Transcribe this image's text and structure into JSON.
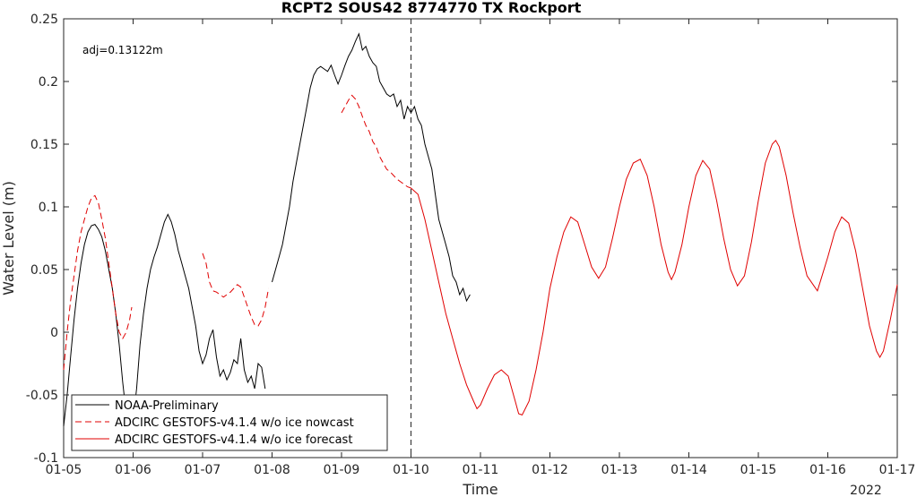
{
  "chart_data": {
    "type": "line",
    "title": "RCPT2 SOUS42 8774770 TX Rockport",
    "xlabel": "Time",
    "ylabel": "Water Level (m)",
    "x_unit": "day of January 2022",
    "xlim": [
      5,
      17
    ],
    "ylim": [
      -0.1,
      0.25
    ],
    "year_label": "2022",
    "annotation": "adj=0.13122m",
    "x_tick_values": [
      5,
      6,
      7,
      8,
      9,
      10,
      11,
      12,
      13,
      14,
      15,
      16,
      17
    ],
    "x_tick_labels": [
      "01-05",
      "01-06",
      "01-07",
      "01-08",
      "01-09",
      "01-10",
      "01-11",
      "01-12",
      "01-13",
      "01-14",
      "01-15",
      "01-16",
      "01-17"
    ],
    "y_tick_values": [
      -0.1,
      -0.05,
      0,
      0.05,
      0.1,
      0.15,
      0.2,
      0.25
    ],
    "y_tick_labels": [
      "-0.1",
      "-0.05",
      "0",
      "0.05",
      "0.1",
      "0.15",
      "0.2",
      "0.25"
    ],
    "vertical_marker_x": 10.0,
    "grid": false,
    "legend_position": "bottom-left",
    "series": [
      {
        "name": "NOAA-Preliminary",
        "color": "#000000",
        "style": "solid",
        "points": [
          [
            5.0,
            -0.075
          ],
          [
            5.05,
            -0.05
          ],
          [
            5.1,
            -0.02
          ],
          [
            5.15,
            0.01
          ],
          [
            5.2,
            0.035
          ],
          [
            5.25,
            0.055
          ],
          [
            5.3,
            0.07
          ],
          [
            5.35,
            0.08
          ],
          [
            5.4,
            0.085
          ],
          [
            5.45,
            0.086
          ],
          [
            5.5,
            0.082
          ],
          [
            5.55,
            0.076
          ],
          [
            5.6,
            0.065
          ],
          [
            5.65,
            0.05
          ],
          [
            5.7,
            0.035
          ],
          [
            5.75,
            0.015
          ],
          [
            5.8,
            -0.01
          ],
          [
            5.85,
            -0.04
          ],
          [
            5.9,
            -0.065
          ],
          [
            5.93,
            -0.075
          ],
          null,
          [
            5.95,
            -0.08
          ],
          [
            6.0,
            -0.07
          ],
          [
            6.05,
            -0.045
          ],
          [
            6.1,
            -0.01
          ],
          [
            6.15,
            0.015
          ],
          [
            6.2,
            0.035
          ],
          [
            6.25,
            0.05
          ],
          [
            6.3,
            0.06
          ],
          [
            6.35,
            0.068
          ],
          [
            6.4,
            0.078
          ],
          [
            6.45,
            0.088
          ],
          [
            6.5,
            0.094
          ],
          [
            6.55,
            0.088
          ],
          [
            6.6,
            0.078
          ],
          [
            6.65,
            0.065
          ],
          [
            6.7,
            0.055
          ],
          [
            6.75,
            0.045
          ],
          [
            6.8,
            0.035
          ],
          [
            6.85,
            0.02
          ],
          [
            6.9,
            0.005
          ],
          [
            6.95,
            -0.015
          ],
          [
            7.0,
            -0.025
          ],
          [
            7.05,
            -0.018
          ],
          [
            7.1,
            -0.005
          ],
          [
            7.15,
            0.002
          ],
          [
            7.2,
            -0.02
          ],
          [
            7.25,
            -0.035
          ],
          [
            7.3,
            -0.03
          ],
          [
            7.35,
            -0.038
          ],
          [
            7.4,
            -0.032
          ],
          [
            7.45,
            -0.022
          ],
          [
            7.5,
            -0.025
          ],
          [
            7.55,
            -0.005
          ],
          [
            7.6,
            -0.03
          ],
          [
            7.65,
            -0.04
          ],
          [
            7.7,
            -0.035
          ],
          [
            7.75,
            -0.045
          ],
          [
            7.8,
            -0.025
          ],
          [
            7.85,
            -0.028
          ],
          [
            7.9,
            -0.045
          ],
          null,
          [
            8.0,
            0.04
          ],
          [
            8.05,
            0.05
          ],
          [
            8.1,
            0.06
          ],
          [
            8.15,
            0.07
          ],
          [
            8.2,
            0.085
          ],
          [
            8.25,
            0.1
          ],
          [
            8.3,
            0.12
          ],
          [
            8.35,
            0.135
          ],
          [
            8.4,
            0.15
          ],
          [
            8.45,
            0.165
          ],
          [
            8.5,
            0.18
          ],
          [
            8.55,
            0.195
          ],
          [
            8.6,
            0.205
          ],
          [
            8.65,
            0.21
          ],
          [
            8.7,
            0.212
          ],
          [
            8.75,
            0.21
          ],
          [
            8.8,
            0.208
          ],
          [
            8.85,
            0.213
          ],
          [
            8.9,
            0.205
          ],
          [
            8.95,
            0.198
          ],
          [
            9.0,
            0.205
          ],
          [
            9.05,
            0.213
          ],
          [
            9.1,
            0.22
          ],
          [
            9.15,
            0.225
          ],
          [
            9.2,
            0.232
          ],
          [
            9.25,
            0.238
          ],
          [
            9.3,
            0.225
          ],
          [
            9.35,
            0.228
          ],
          [
            9.4,
            0.22
          ],
          [
            9.45,
            0.215
          ],
          [
            9.5,
            0.212
          ],
          [
            9.55,
            0.2
          ],
          [
            9.6,
            0.195
          ],
          [
            9.65,
            0.19
          ],
          [
            9.7,
            0.188
          ],
          [
            9.75,
            0.19
          ],
          [
            9.8,
            0.18
          ],
          [
            9.85,
            0.185
          ],
          [
            9.9,
            0.17
          ],
          [
            9.95,
            0.18
          ],
          [
            10.0,
            0.175
          ],
          [
            10.05,
            0.18
          ],
          [
            10.1,
            0.17
          ],
          [
            10.15,
            0.165
          ],
          [
            10.2,
            0.15
          ],
          [
            10.25,
            0.14
          ],
          [
            10.3,
            0.13
          ],
          [
            10.35,
            0.11
          ],
          [
            10.4,
            0.09
          ],
          [
            10.45,
            0.08
          ],
          [
            10.5,
            0.07
          ],
          [
            10.55,
            0.06
          ],
          [
            10.6,
            0.045
          ],
          [
            10.65,
            0.04
          ],
          [
            10.7,
            0.03
          ],
          [
            10.75,
            0.035
          ],
          [
            10.8,
            0.025
          ],
          [
            10.85,
            0.03
          ]
        ]
      },
      {
        "name": "ADCIRC GESTOFS-v4.1.4 w/o ice nowcast",
        "color": "#e00000",
        "style": "dashed",
        "points": [
          [
            5.0,
            -0.03
          ],
          [
            5.05,
            0.0
          ],
          [
            5.1,
            0.025
          ],
          [
            5.15,
            0.045
          ],
          [
            5.2,
            0.065
          ],
          [
            5.25,
            0.08
          ],
          [
            5.3,
            0.09
          ],
          [
            5.35,
            0.1
          ],
          [
            5.4,
            0.107
          ],
          [
            5.45,
            0.109
          ],
          [
            5.5,
            0.103
          ],
          [
            5.55,
            0.09
          ],
          [
            5.6,
            0.075
          ],
          [
            5.65,
            0.055
          ],
          [
            5.7,
            0.035
          ],
          [
            5.75,
            0.015
          ],
          [
            5.8,
            0.0
          ],
          [
            5.85,
            -0.005
          ],
          [
            5.9,
            0.0
          ],
          [
            5.95,
            0.01
          ],
          [
            5.98,
            0.02
          ],
          null,
          [
            7.0,
            0.063
          ],
          [
            7.05,
            0.055
          ],
          [
            7.1,
            0.04
          ],
          [
            7.15,
            0.033
          ],
          [
            7.2,
            0.032
          ],
          [
            7.25,
            0.03
          ],
          [
            7.3,
            0.028
          ],
          [
            7.35,
            0.03
          ],
          [
            7.4,
            0.032
          ],
          [
            7.45,
            0.035
          ],
          [
            7.5,
            0.038
          ],
          [
            7.55,
            0.036
          ],
          [
            7.6,
            0.028
          ],
          [
            7.65,
            0.02
          ],
          [
            7.7,
            0.012
          ],
          [
            7.75,
            0.006
          ],
          [
            7.8,
            0.005
          ],
          [
            7.85,
            0.01
          ],
          [
            7.9,
            0.02
          ],
          [
            7.95,
            0.035
          ],
          null,
          [
            9.0,
            0.175
          ],
          [
            9.05,
            0.18
          ],
          [
            9.1,
            0.185
          ],
          [
            9.15,
            0.189
          ],
          [
            9.2,
            0.186
          ],
          [
            9.25,
            0.18
          ],
          [
            9.3,
            0.172
          ],
          [
            9.35,
            0.165
          ],
          [
            9.4,
            0.16
          ],
          [
            9.45,
            0.152
          ],
          [
            9.5,
            0.148
          ],
          [
            9.55,
            0.14
          ],
          [
            9.6,
            0.135
          ],
          [
            9.65,
            0.13
          ],
          [
            9.7,
            0.128
          ],
          [
            9.75,
            0.125
          ],
          [
            9.8,
            0.122
          ],
          [
            9.85,
            0.12
          ],
          [
            9.9,
            0.118
          ],
          [
            9.95,
            0.116
          ],
          [
            10.0,
            0.115
          ]
        ]
      },
      {
        "name": "ADCIRC GESTOFS-v4.1.4 w/o ice forecast",
        "color": "#e00000",
        "style": "solid",
        "points": [
          [
            10.0,
            0.115
          ],
          [
            10.1,
            0.11
          ],
          [
            10.2,
            0.09
          ],
          [
            10.3,
            0.065
          ],
          [
            10.4,
            0.04
          ],
          [
            10.5,
            0.015
          ],
          [
            10.6,
            -0.005
          ],
          [
            10.7,
            -0.025
          ],
          [
            10.8,
            -0.042
          ],
          [
            10.9,
            -0.055
          ],
          [
            10.95,
            -0.061
          ],
          [
            11.0,
            -0.058
          ],
          [
            11.1,
            -0.045
          ],
          [
            11.2,
            -0.034
          ],
          [
            11.3,
            -0.03
          ],
          [
            11.4,
            -0.035
          ],
          [
            11.5,
            -0.055
          ],
          [
            11.55,
            -0.065
          ],
          [
            11.6,
            -0.066
          ],
          [
            11.7,
            -0.055
          ],
          [
            11.8,
            -0.03
          ],
          [
            11.9,
            0.0
          ],
          [
            12.0,
            0.035
          ],
          [
            12.1,
            0.06
          ],
          [
            12.2,
            0.08
          ],
          [
            12.3,
            0.092
          ],
          [
            12.4,
            0.088
          ],
          [
            12.5,
            0.07
          ],
          [
            12.6,
            0.052
          ],
          [
            12.7,
            0.043
          ],
          [
            12.8,
            0.052
          ],
          [
            12.9,
            0.075
          ],
          [
            13.0,
            0.1
          ],
          [
            13.1,
            0.122
          ],
          [
            13.2,
            0.135
          ],
          [
            13.3,
            0.138
          ],
          [
            13.4,
            0.125
          ],
          [
            13.5,
            0.1
          ],
          [
            13.6,
            0.07
          ],
          [
            13.7,
            0.048
          ],
          [
            13.75,
            0.042
          ],
          [
            13.8,
            0.048
          ],
          [
            13.9,
            0.07
          ],
          [
            14.0,
            0.1
          ],
          [
            14.1,
            0.125
          ],
          [
            14.2,
            0.137
          ],
          [
            14.3,
            0.13
          ],
          [
            14.4,
            0.105
          ],
          [
            14.5,
            0.075
          ],
          [
            14.6,
            0.05
          ],
          [
            14.7,
            0.037
          ],
          [
            14.8,
            0.045
          ],
          [
            14.9,
            0.072
          ],
          [
            15.0,
            0.105
          ],
          [
            15.1,
            0.135
          ],
          [
            15.2,
            0.15
          ],
          [
            15.25,
            0.153
          ],
          [
            15.3,
            0.148
          ],
          [
            15.4,
            0.125
          ],
          [
            15.5,
            0.095
          ],
          [
            15.6,
            0.068
          ],
          [
            15.7,
            0.045
          ],
          [
            15.8,
            0.037
          ],
          [
            15.85,
            0.033
          ],
          [
            15.9,
            0.042
          ],
          [
            16.0,
            0.06
          ],
          [
            16.1,
            0.08
          ],
          [
            16.2,
            0.092
          ],
          [
            16.3,
            0.087
          ],
          [
            16.4,
            0.065
          ],
          [
            16.5,
            0.035
          ],
          [
            16.6,
            0.005
          ],
          [
            16.7,
            -0.015
          ],
          [
            16.75,
            -0.02
          ],
          [
            16.8,
            -0.015
          ],
          [
            16.9,
            0.01
          ],
          [
            17.0,
            0.038
          ]
        ]
      }
    ]
  }
}
